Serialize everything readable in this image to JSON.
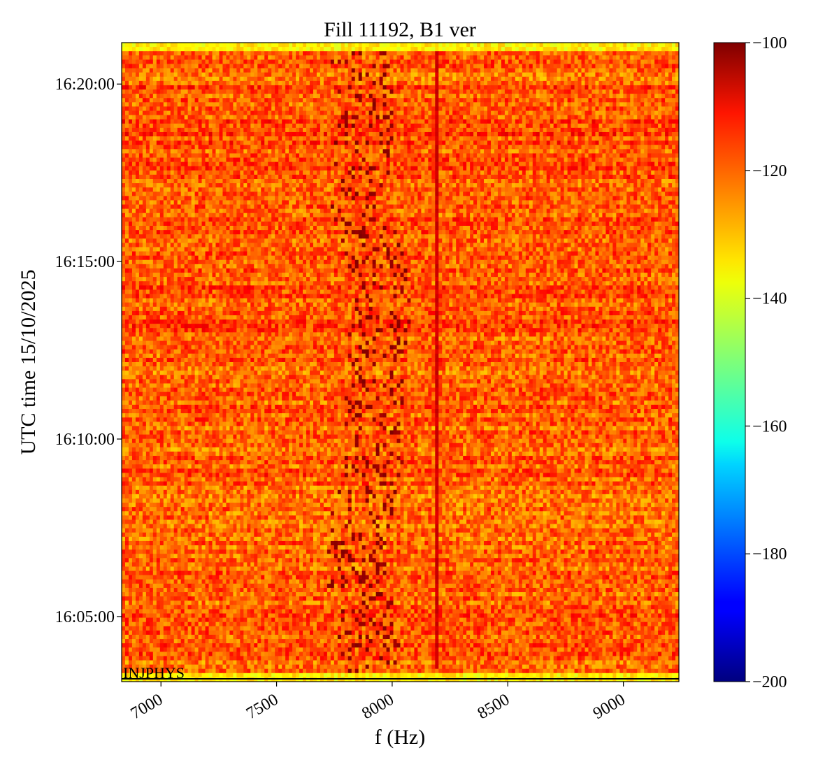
{
  "chart_data": {
    "type": "heatmap",
    "title": "Fill 11192, B1 ver",
    "xlabel": "f (Hz)",
    "ylabel": "UTC time 15/10/2025",
    "xlim": [
      6830,
      9240
    ],
    "ylim": [
      "16:03:10",
      "16:21:10"
    ],
    "x_ticks": [
      7000,
      7500,
      8000,
      8500,
      9000
    ],
    "y_ticks": [
      "16:05:00",
      "16:10:00",
      "16:15:00",
      "16:20:00"
    ],
    "colorbar": {
      "colormap": "jet",
      "range": [
        -200,
        -100
      ],
      "ticks": [
        -100,
        -120,
        -140,
        -160,
        -180,
        -200
      ],
      "tick_labels": [
        "−100",
        "−120",
        "−140",
        "−160",
        "−180",
        "−200"
      ]
    },
    "background_level": -122,
    "features": [
      {
        "kind": "vertical-line",
        "f_hz": 8190,
        "level": -108,
        "from": "16:03:40",
        "to": "16:21:00"
      },
      {
        "kind": "wandering-band",
        "center_hz": 7900,
        "half_width_hz": 130,
        "level": -102
      },
      {
        "kind": "noise-edge-rows",
        "level": -136,
        "times": [
          "16:03:20",
          "16:21:05"
        ]
      }
    ],
    "annotations": [
      {
        "text": "INJPHYS",
        "time": "16:03:20"
      }
    ]
  }
}
